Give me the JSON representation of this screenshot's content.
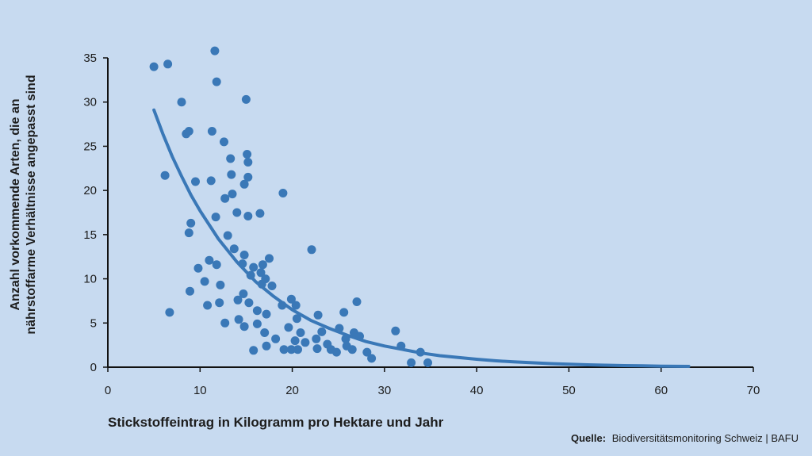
{
  "colors": {
    "background": "#c7daf0",
    "marker": "#3a78b7",
    "curve": "#3a78b7",
    "axis": "#111111"
  },
  "chart_data": {
    "type": "scatter",
    "xlabel": "Stickstoffeintrag in Kilogramm pro Hektare und Jahr",
    "ylabel_lines": [
      "Anzahl vorkommende Arten, die an",
      "nährstoffarme Verhältnisse angepasst sind"
    ],
    "xlim": [
      0,
      70
    ],
    "ylim": [
      0,
      35
    ],
    "xticks": [
      "0",
      "10",
      "20",
      "30",
      "40",
      "50",
      "60",
      "70"
    ],
    "yticks": [
      "0",
      "5",
      "10",
      "15",
      "20",
      "25",
      "30",
      "35"
    ],
    "grid": false,
    "series": [
      {
        "values": [
          [
            5,
            34
          ],
          [
            6.5,
            34.3
          ],
          [
            8,
            30
          ],
          [
            8.5,
            26.4
          ],
          [
            8.8,
            26.7
          ],
          [
            6.2,
            21.7
          ],
          [
            9.5,
            21
          ],
          [
            9,
            16.3
          ],
          [
            8.8,
            15.2
          ],
          [
            8.9,
            8.6
          ],
          [
            6.7,
            6.2
          ],
          [
            9.8,
            11.2
          ],
          [
            10.5,
            9.7
          ],
          [
            11,
            12.1
          ],
          [
            11.3,
            26.7
          ],
          [
            11.2,
            21.1
          ],
          [
            11.7,
            17
          ],
          [
            11.8,
            11.6
          ],
          [
            11.6,
            35.8
          ],
          [
            11.8,
            32.3
          ],
          [
            12.2,
            9.3
          ],
          [
            12.1,
            7.3
          ],
          [
            10.8,
            7
          ],
          [
            12.6,
            25.5
          ],
          [
            12.7,
            19.1
          ],
          [
            13.3,
            23.6
          ],
          [
            13.4,
            21.8
          ],
          [
            13.5,
            19.6
          ],
          [
            13,
            14.9
          ],
          [
            13.7,
            13.4
          ],
          [
            12.7,
            5
          ],
          [
            14,
            17.5
          ],
          [
            14.1,
            7.6
          ],
          [
            14.2,
            5.4
          ],
          [
            14.8,
            12.7
          ],
          [
            14.6,
            11.7
          ],
          [
            14.7,
            8.3
          ],
          [
            14.8,
            4.6
          ],
          [
            14.8,
            20.7
          ],
          [
            15,
            30.3
          ],
          [
            15.1,
            24.1
          ],
          [
            15.2,
            23.2
          ],
          [
            15.2,
            21.5
          ],
          [
            15.2,
            17.1
          ],
          [
            15.5,
            10.4
          ],
          [
            15.3,
            7.3
          ],
          [
            15.8,
            11.3
          ],
          [
            16.2,
            6.4
          ],
          [
            16.2,
            4.9
          ],
          [
            15.8,
            1.9
          ],
          [
            16.5,
            17.4
          ],
          [
            16.8,
            11.6
          ],
          [
            16.6,
            10.7
          ],
          [
            16.7,
            9.4
          ],
          [
            17.1,
            10
          ],
          [
            17.2,
            6
          ],
          [
            17.5,
            12.3
          ],
          [
            17,
            3.9
          ],
          [
            17.2,
            2.4
          ],
          [
            17.8,
            9.2
          ],
          [
            18.2,
            3.2
          ],
          [
            19,
            19.7
          ],
          [
            18.9,
            7
          ],
          [
            19.6,
            4.5
          ],
          [
            19.9,
            7.7
          ],
          [
            19.1,
            2
          ],
          [
            20.4,
            7
          ],
          [
            20.5,
            5.5
          ],
          [
            20.3,
            3
          ],
          [
            19.9,
            2
          ],
          [
            20.6,
            2
          ],
          [
            20.9,
            3.9
          ],
          [
            21.4,
            2.8
          ],
          [
            22.1,
            13.3
          ],
          [
            22.8,
            5.9
          ],
          [
            22.6,
            3.2
          ],
          [
            23.2,
            4
          ],
          [
            22.7,
            2.1
          ],
          [
            23.8,
            2.6
          ],
          [
            24.2,
            2
          ],
          [
            24.8,
            1.7
          ],
          [
            25.1,
            4.4
          ],
          [
            25.6,
            6.2
          ],
          [
            25.8,
            3.2
          ],
          [
            25.9,
            2.4
          ],
          [
            26.5,
            2
          ],
          [
            26.7,
            3.9
          ],
          [
            27,
            7.4
          ],
          [
            27.3,
            3.5
          ],
          [
            28.1,
            1.7
          ],
          [
            28.6,
            1
          ],
          [
            31.2,
            4.1
          ],
          [
            31.8,
            2.4
          ],
          [
            32.9,
            0.5
          ],
          [
            33.9,
            1.7
          ],
          [
            34.7,
            0.5
          ]
        ]
      }
    ],
    "curve": {
      "type": "exponential_fit",
      "x_range": [
        5,
        63
      ],
      "values": [
        [
          5,
          29.1
        ],
        [
          6,
          26.3
        ],
        [
          7,
          23.8
        ],
        [
          8,
          21.6
        ],
        [
          9,
          19.5
        ],
        [
          10,
          17.7
        ],
        [
          12,
          14.5
        ],
        [
          14,
          11.9
        ],
        [
          16,
          9.7
        ],
        [
          18,
          8
        ],
        [
          20,
          6.5
        ],
        [
          22,
          5.3
        ],
        [
          24,
          4.4
        ],
        [
          26,
          3.6
        ],
        [
          28,
          2.9
        ],
        [
          30,
          2.4
        ],
        [
          32,
          2
        ],
        [
          34,
          1.6
        ],
        [
          36,
          1.3
        ],
        [
          38,
          1.1
        ],
        [
          40,
          0.9
        ],
        [
          42,
          0.73
        ],
        [
          44,
          0.6
        ],
        [
          46,
          0.5
        ],
        [
          48,
          0.4
        ],
        [
          50,
          0.33
        ],
        [
          52,
          0.27
        ],
        [
          54,
          0.22
        ],
        [
          56,
          0.18
        ],
        [
          58,
          0.15
        ],
        [
          60,
          0.12
        ],
        [
          63,
          0.09
        ]
      ]
    }
  },
  "source": {
    "label": "Quelle:",
    "text": "Biodiversitätsmonitoring Schweiz | BAFU"
  }
}
